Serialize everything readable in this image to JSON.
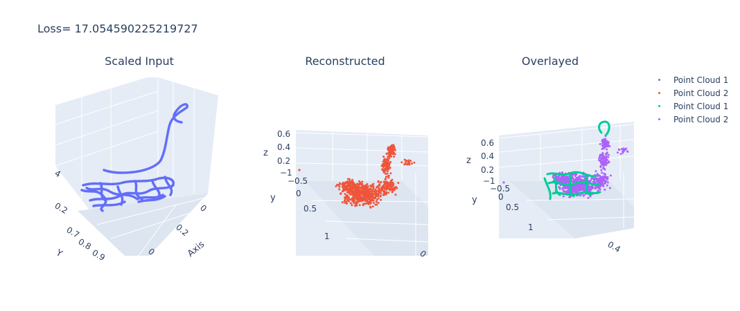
{
  "title": "Loss= 17.054590225219727",
  "chart_data": [
    {
      "type": "scatter3d",
      "title": "Scaled Input",
      "series": [
        {
          "name": "Point Cloud 1",
          "color": "#636efa"
        }
      ],
      "ticks": {
        "z": [
          "4",
          "0.2"
        ],
        "y": [
          "0.7",
          "0.8",
          "0.9"
        ],
        "x": [
          "0",
          "0.2",
          "0"
        ]
      },
      "axis_labels": {
        "y": "Y",
        "x": "Axis"
      }
    },
    {
      "type": "scatter3d",
      "title": "Reconstructed",
      "series": [
        {
          "name": "Point Cloud 2",
          "color": "#ef553b"
        }
      ],
      "ticks": {
        "z": [
          "0.6",
          "0.4",
          "0.2",
          "−1",
          "−0.5",
          "0",
          "0.5",
          "1"
        ],
        "x": [
          "0"
        ]
      },
      "axis_labels": {
        "z": "z",
        "y": "y"
      }
    },
    {
      "type": "scatter3d",
      "title": "Overlayed",
      "series": [
        {
          "name": "Point Cloud 1",
          "color": "#00cc96"
        },
        {
          "name": "Point Cloud 2",
          "color": "#ab63fa"
        }
      ],
      "ticks": {
        "z": [
          "0.6",
          "0.4",
          "0.2",
          "−1",
          "−0.5",
          "0",
          "0.5",
          "1"
        ],
        "x": [
          "0.4"
        ]
      },
      "axis_labels": {
        "z": "z",
        "y": "y"
      }
    }
  ],
  "legend": [
    {
      "label": "Point Cloud 1",
      "color": "#636efa"
    },
    {
      "label": "Point Cloud 2",
      "color": "#ef553b"
    },
    {
      "label": "Point Cloud 1",
      "color": "#00cc96"
    },
    {
      "label": "Point Cloud 2",
      "color": "#ab63fa"
    }
  ]
}
